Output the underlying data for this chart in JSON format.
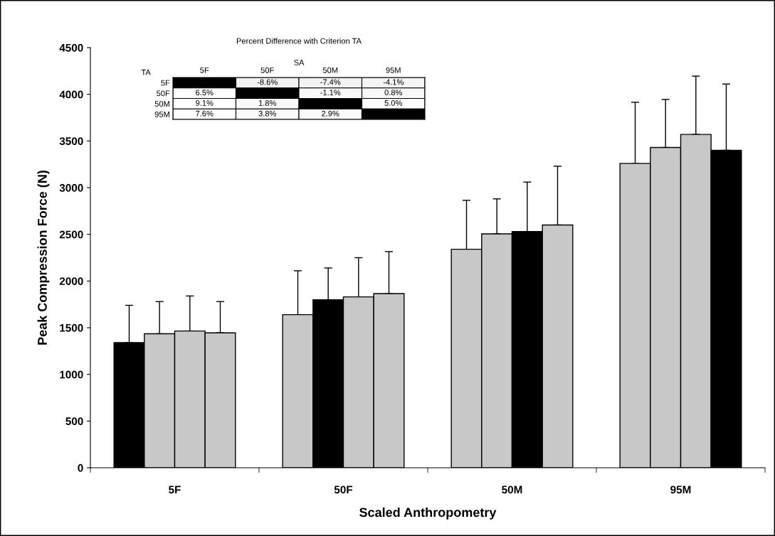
{
  "chart_data": [
    {
      "type": "bar",
      "xlabel": "Scaled Anthropometry",
      "ylabel": "Peak Compression Force (N)",
      "categories": [
        "5F",
        "50F",
        "50M",
        "95M"
      ],
      "series": [
        {
          "colors": [
            "#000000",
            "#c8c8c8",
            "#c8c8c8",
            "#c8c8c8"
          ],
          "values": [
            1340,
            1640,
            2340,
            3260
          ],
          "errors": [
            [
              1340,
              1740
            ],
            [
              1640,
              2110
            ],
            [
              2340,
              2865
            ],
            [
              3260,
              3915
            ]
          ]
        },
        {
          "colors": [
            "#c8c8c8",
            "#000000",
            "#c8c8c8",
            "#c8c8c8"
          ],
          "values": [
            1435,
            1800,
            2505,
            3430
          ],
          "errors": [
            [
              1435,
              1780
            ],
            [
              1800,
              2140
            ],
            [
              2505,
              2880
            ],
            [
              3430,
              3945
            ]
          ]
        },
        {
          "colors": [
            "#c8c8c8",
            "#c8c8c8",
            "#000000",
            "#c8c8c8"
          ],
          "values": [
            1465,
            1830,
            2530,
            3570
          ],
          "errors": [
            [
              1465,
              1840
            ],
            [
              1830,
              2250
            ],
            [
              2530,
              3060
            ],
            [
              3570,
              4195
            ]
          ]
        },
        {
          "colors": [
            "#c8c8c8",
            "#c8c8c8",
            "#c8c8c8",
            "#000000"
          ],
          "values": [
            1445,
            1865,
            2600,
            3400
          ],
          "errors": [
            [
              1445,
              1780
            ],
            [
              1865,
              2315
            ],
            [
              2600,
              3230
            ],
            [
              3400,
              4110
            ]
          ]
        }
      ],
      "ylim": [
        0,
        4500
      ],
      "yticks": [
        0,
        500,
        1000,
        1500,
        2000,
        2500,
        3000,
        3500,
        4000,
        4500
      ],
      "grid": false,
      "legend": false
    },
    {
      "type": "heatmap",
      "title": "Percent Difference with Criterion TA",
      "xlabel": "SA",
      "ylabel": "TA",
      "categories": [
        "5F",
        "50F",
        "50M",
        "95M"
      ],
      "y_categories": [
        "5F",
        "50F",
        "50M",
        "95M"
      ],
      "cells": [
        [
          null,
          -8.6,
          -7.4,
          -4.1
        ],
        [
          6.5,
          null,
          -1.1,
          0.8
        ],
        [
          9.1,
          1.8,
          null,
          5.0
        ],
        [
          7.6,
          3.8,
          2.9,
          null
        ]
      ],
      "cell_labels": [
        [
          null,
          "-8.6%",
          "-7.4%",
          "-4.1%"
        ],
        [
          "6.5%",
          null,
          "-1.1%",
          "0.8%"
        ],
        [
          "9.1%",
          "1.8%",
          null,
          "5.0%"
        ],
        [
          "7.6%",
          "3.8%",
          "2.9%",
          null
        ]
      ]
    }
  ]
}
